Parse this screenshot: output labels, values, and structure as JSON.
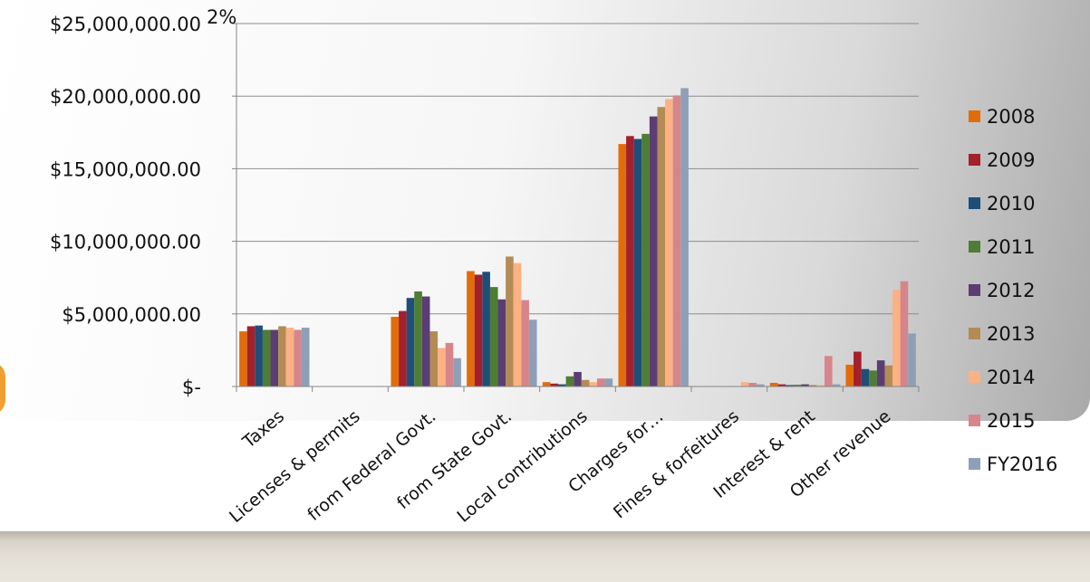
{
  "chart_data": {
    "type": "bar",
    "annotation": "2%",
    "categories": [
      "Taxes",
      "Licenses & permits",
      "from Federal Govt.",
      "from State Govt.",
      "Local contributions",
      "Charges for…",
      "Fines & forfeitures",
      "Interest & rent",
      "Other revenue"
    ],
    "yticks": [
      "$-",
      "$5,000,000.00",
      "$10,000,000.00",
      "$15,000,000.00",
      "$20,000,000.00",
      "$25,000,000.00"
    ],
    "ylim": [
      0,
      25000000
    ],
    "grid": true,
    "legend": "right",
    "series": [
      {
        "name": "2008",
        "color": "#e36c0a",
        "values": [
          3800000,
          0,
          4800000,
          7950000,
          300000,
          16700000,
          0,
          250000,
          1500000
        ]
      },
      {
        "name": "2009",
        "color": "#a4202a",
        "values": [
          4150000,
          0,
          5200000,
          7700000,
          200000,
          17250000,
          0,
          150000,
          2400000
        ]
      },
      {
        "name": "2010",
        "color": "#1f4e79",
        "values": [
          4200000,
          0,
          6100000,
          7900000,
          150000,
          17050000,
          0,
          100000,
          1200000
        ]
      },
      {
        "name": "2011",
        "color": "#4e7d35",
        "values": [
          3900000,
          0,
          6550000,
          6850000,
          700000,
          17400000,
          0,
          120000,
          1100000
        ]
      },
      {
        "name": "2012",
        "color": "#5b3d73",
        "values": [
          3900000,
          0,
          6200000,
          6000000,
          1000000,
          18600000,
          0,
          150000,
          1800000
        ]
      },
      {
        "name": "2013",
        "color": "#b38b54",
        "values": [
          4150000,
          0,
          3800000,
          8950000,
          450000,
          19250000,
          0,
          100000,
          1450000
        ]
      },
      {
        "name": "2014",
        "color": "#fbb183",
        "values": [
          4050000,
          0,
          2650000,
          8500000,
          300000,
          19800000,
          300000,
          100000,
          6650000
        ]
      },
      {
        "name": "2015",
        "color": "#d6858a",
        "values": [
          3900000,
          0,
          3000000,
          5950000,
          550000,
          20050000,
          250000,
          2100000,
          7250000
        ]
      },
      {
        "name": "FY2016",
        "color": "#8ea0b8",
        "values": [
          4050000,
          0,
          1950000,
          4600000,
          550000,
          20550000,
          150000,
          150000,
          3650000
        ]
      }
    ]
  }
}
